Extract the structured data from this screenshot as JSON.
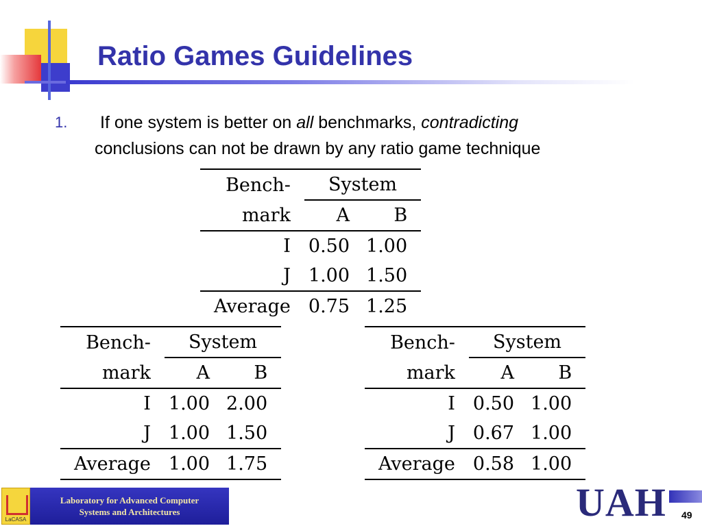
{
  "title": "Ratio Games Guidelines",
  "bullet": {
    "number": "1.",
    "part1": "If one system is better on ",
    "all": "all",
    "part2": " benchmarks, ",
    "contradicting": "contradicting",
    "line2": "conclusions can not be drawn by any ratio game technique"
  },
  "tables": [
    {
      "header_bench_1": "Bench-",
      "header_bench_2": "mark",
      "header_system": "System",
      "col_a": "A",
      "col_b": "B",
      "rows": [
        {
          "label": "I",
          "a": "0.50",
          "b": "1.00"
        },
        {
          "label": "J",
          "a": "1.00",
          "b": "1.50"
        }
      ],
      "average": {
        "label": "Average",
        "a": "0.75",
        "b": "1.25"
      }
    },
    {
      "header_bench_1": "Bench-",
      "header_bench_2": "mark",
      "header_system": "System",
      "col_a": "A",
      "col_b": "B",
      "rows": [
        {
          "label": "I",
          "a": "1.00",
          "b": "2.00"
        },
        {
          "label": "J",
          "a": "1.00",
          "b": "1.50"
        }
      ],
      "average": {
        "label": "Average",
        "a": "1.00",
        "b": "1.75"
      }
    },
    {
      "header_bench_1": "Bench-",
      "header_bench_2": "mark",
      "header_system": "System",
      "col_a": "A",
      "col_b": "B",
      "rows": [
        {
          "label": "I",
          "a": "0.50",
          "b": "1.00"
        },
        {
          "label": "J",
          "a": "0.67",
          "b": "1.00"
        }
      ],
      "average": {
        "label": "Average",
        "a": "0.58",
        "b": "1.00"
      }
    }
  ],
  "footer": {
    "lab_line1": "Laboratory for Advanced Computer",
    "lab_line2": "Systems and Architectures",
    "logo_text": "LaCASA",
    "university": "UAH",
    "page_number": "49"
  },
  "colors": {
    "title": "#3333aa",
    "footer_bar": "#2222a0",
    "accent_yellow": "#f6d53c",
    "accent_red": "#e5383b",
    "accent_blue": "#3d3dcc"
  }
}
